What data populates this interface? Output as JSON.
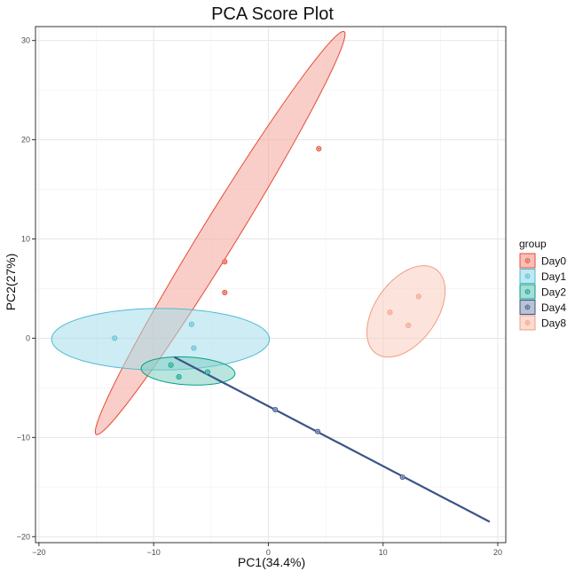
{
  "chart_data": {
    "type": "scatter",
    "title": "PCA Score Plot",
    "xlabel": "PC1(34.4%)",
    "ylabel": "PC2(27%)",
    "xlim": [
      -20.3,
      20.7
    ],
    "ylim": [
      -20.6,
      31.4
    ],
    "xticks": [
      -20,
      -10,
      0,
      10,
      20
    ],
    "yticks": [
      -20,
      -10,
      0,
      10,
      20,
      30
    ],
    "grid": true,
    "legend_title": "group",
    "legend_position": "right",
    "series": [
      {
        "name": "Day0",
        "color": "#E64B35",
        "fill": "#F4A59A",
        "points": [
          [
            4.4,
            19.1
          ],
          [
            -3.8,
            7.7
          ],
          [
            -3.8,
            4.6
          ]
        ],
        "ellipse": {
          "center": [
            -4.2,
            10.6
          ],
          "semi_major": 23.0,
          "semi_minor": 1.6,
          "angle_deg": 62
        }
      },
      {
        "name": "Day1",
        "color": "#4DBBD5",
        "fill": "#A6DDEA",
        "points": [
          [
            -13.4,
            0.0
          ],
          [
            -6.7,
            1.4
          ],
          [
            -6.5,
            -1.0
          ]
        ],
        "ellipse": {
          "center": [
            -9.4,
            -0.1
          ],
          "semi_major": 9.5,
          "semi_minor": 3.1,
          "angle_deg": 0
        }
      },
      {
        "name": "Day2",
        "color": "#00A087",
        "fill": "#80CFC3",
        "points": [
          [
            -8.5,
            -2.7
          ],
          [
            -7.8,
            -3.9
          ],
          [
            -5.3,
            -3.4
          ]
        ],
        "ellipse": {
          "center": [
            -7.0,
            -3.3
          ],
          "semi_major": 4.1,
          "semi_minor": 1.4,
          "angle_deg": -4
        }
      },
      {
        "name": "Day4",
        "color": "#3C5488",
        "fill": "#9DAAC3",
        "points": [
          [
            0.6,
            -7.2
          ],
          [
            4.3,
            -9.4
          ],
          [
            11.7,
            -14.0
          ]
        ],
        "segment": [
          [
            -8.2,
            -1.9
          ],
          [
            19.3,
            -18.5
          ]
        ]
      },
      {
        "name": "Day8",
        "color": "#F39B7F",
        "fill": "#F9CDBF",
        "points": [
          [
            10.6,
            2.6
          ],
          [
            13.1,
            4.2
          ],
          [
            12.2,
            1.3
          ]
        ],
        "ellipse": {
          "center": [
            12.0,
            2.7
          ],
          "semi_major": 5.0,
          "semi_minor": 2.8,
          "angle_deg": 62
        }
      }
    ]
  }
}
